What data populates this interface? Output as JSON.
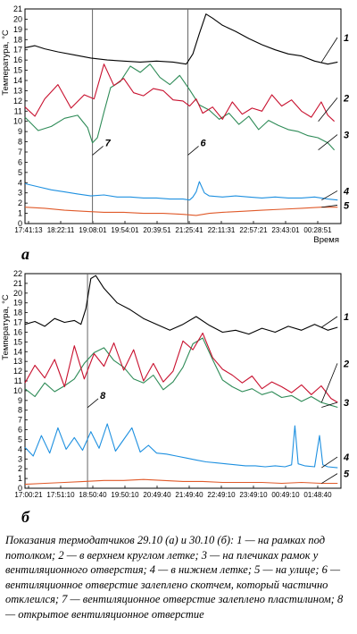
{
  "chart_data": [
    {
      "type": "line",
      "panel_label": "а",
      "ylabel": "Температура, °C",
      "xlabel": "Время",
      "ylim": [
        0,
        21
      ],
      "y_ticks": [
        0,
        1,
        2,
        3,
        4,
        5,
        6,
        7,
        8,
        9,
        10,
        11,
        12,
        13,
        14,
        15,
        16,
        17,
        18,
        19,
        20,
        21
      ],
      "x_ticks": [
        "17:41:13",
        "18:22:11",
        "19:08:01",
        "19:54:01",
        "20:39:51",
        "21:25:41",
        "22:11:31",
        "22:57:21",
        "23:43:01",
        "00:28:51"
      ],
      "x_range": [
        0,
        9.6
      ],
      "vlines": [
        {
          "x": 2.05,
          "label": "7",
          "label_y": 7.4
        },
        {
          "x": 4.95,
          "label": "6",
          "label_y": 7.4
        }
      ],
      "series": [
        {
          "name": "1",
          "color": "#000000",
          "label_y": 18.2,
          "x": [
            0,
            0.3,
            0.6,
            1.0,
            1.5,
            2.0,
            2.5,
            3.0,
            3.5,
            4.0,
            4.5,
            4.9,
            5.1,
            5.3,
            5.5,
            5.7,
            6.0,
            6.4,
            6.8,
            7.2,
            7.6,
            8.0,
            8.4,
            8.8,
            9.2,
            9.5
          ],
          "y": [
            17.2,
            17.4,
            17.1,
            16.8,
            16.5,
            16.2,
            16.0,
            15.9,
            15.8,
            15.9,
            15.8,
            15.6,
            16.6,
            18.6,
            20.5,
            20.1,
            19.4,
            18.8,
            18.1,
            17.5,
            17.0,
            16.6,
            16.4,
            15.9,
            15.6,
            15.8
          ]
        },
        {
          "name": "2",
          "color": "#c8102e",
          "label_y": 12.3,
          "x": [
            0,
            0.3,
            0.6,
            1.0,
            1.4,
            1.8,
            2.1,
            2.4,
            2.7,
            3.0,
            3.3,
            3.6,
            3.9,
            4.2,
            4.5,
            4.8,
            5.0,
            5.2,
            5.4,
            5.7,
            6.0,
            6.3,
            6.6,
            6.9,
            7.2,
            7.5,
            7.8,
            8.1,
            8.4,
            8.7,
            9.0,
            9.2,
            9.4
          ],
          "y": [
            11.4,
            10.5,
            12.2,
            13.6,
            11.3,
            12.6,
            12.2,
            15.6,
            13.5,
            14.2,
            12.8,
            12.5,
            13.2,
            13.0,
            12.1,
            12.0,
            11.5,
            12.2,
            10.8,
            11.4,
            10.2,
            11.9,
            10.7,
            11.3,
            11.0,
            12.6,
            11.5,
            12.1,
            11.0,
            10.4,
            11.9,
            10.6,
            10.0
          ]
        },
        {
          "name": "3",
          "color": "#2e8b57",
          "label_y": 8.7,
          "x": [
            0,
            0.4,
            0.8,
            1.2,
            1.6,
            1.9,
            2.05,
            2.2,
            2.4,
            2.6,
            2.9,
            3.2,
            3.5,
            3.8,
            4.1,
            4.4,
            4.7,
            5.0,
            5.3,
            5.6,
            5.9,
            6.2,
            6.5,
            6.8,
            7.1,
            7.4,
            7.7,
            8.0,
            8.3,
            8.6,
            8.9,
            9.2,
            9.4
          ],
          "y": [
            10.4,
            9.1,
            9.5,
            10.3,
            10.6,
            9.4,
            7.9,
            8.4,
            10.9,
            13.3,
            13.9,
            15.4,
            14.8,
            15.6,
            14.3,
            13.6,
            14.5,
            13.1,
            11.6,
            11.1,
            10.2,
            10.8,
            9.7,
            10.5,
            9.2,
            10.1,
            9.6,
            9.2,
            9.0,
            8.6,
            8.4,
            7.9,
            7.2
          ]
        },
        {
          "name": "4",
          "color": "#1e90e0",
          "label_y": 3.2,
          "x": [
            0,
            0.4,
            0.8,
            1.2,
            1.6,
            2.0,
            2.4,
            2.8,
            3.2,
            3.6,
            4.0,
            4.4,
            4.8,
            5.0,
            5.1,
            5.2,
            5.3,
            5.45,
            5.6,
            6.0,
            6.4,
            6.8,
            7.2,
            7.6,
            8.0,
            8.4,
            8.8,
            9.2,
            9.5
          ],
          "y": [
            3.9,
            3.6,
            3.3,
            3.1,
            2.9,
            2.7,
            2.8,
            2.6,
            2.6,
            2.5,
            2.5,
            2.4,
            2.4,
            2.3,
            2.6,
            3.1,
            4.1,
            3.0,
            2.7,
            2.6,
            2.7,
            2.6,
            2.5,
            2.6,
            2.5,
            2.5,
            2.6,
            2.4,
            2.3
          ]
        },
        {
          "name": "5",
          "color": "#e05a2a",
          "label_y": 1.8,
          "x": [
            0,
            0.6,
            1.2,
            1.8,
            2.4,
            3.0,
            3.6,
            4.2,
            4.8,
            5.2,
            5.6,
            6.0,
            6.6,
            7.2,
            7.8,
            8.4,
            9.0,
            9.5
          ],
          "y": [
            1.6,
            1.5,
            1.3,
            1.2,
            1.1,
            1.1,
            1.0,
            1.0,
            0.9,
            0.8,
            1.0,
            1.1,
            1.2,
            1.3,
            1.4,
            1.5,
            1.6,
            1.6
          ]
        }
      ]
    },
    {
      "type": "line",
      "panel_label": "б",
      "ylabel": "Температура, °C",
      "xlabel": "",
      "ylim": [
        0,
        22
      ],
      "y_ticks": [
        0,
        1,
        2,
        3,
        4,
        5,
        6,
        7,
        8,
        9,
        10,
        11,
        12,
        13,
        14,
        15,
        16,
        17,
        18,
        19,
        20,
        21,
        22
      ],
      "x_ticks": [
        "17:00:21",
        "17:51:10",
        "18:50:40",
        "19:50:10",
        "20:49:40",
        "21:49:40",
        "22:49:10",
        "23:49:10",
        "00:49:10",
        "01:48:40"
      ],
      "x_range": [
        0,
        9.6
      ],
      "vlines": [
        {
          "x": 1.9,
          "label": "8",
          "label_y": 9.0
        }
      ],
      "series": [
        {
          "name": "1",
          "color": "#000000",
          "label_y": 17.6,
          "x": [
            0,
            0.3,
            0.6,
            0.9,
            1.2,
            1.5,
            1.7,
            1.85,
            2.0,
            2.15,
            2.4,
            2.8,
            3.2,
            3.6,
            4.0,
            4.4,
            4.8,
            5.2,
            5.6,
            6.0,
            6.4,
            6.8,
            7.2,
            7.6,
            8.0,
            8.4,
            8.8,
            9.2,
            9.5
          ],
          "y": [
            16.8,
            17.1,
            16.6,
            17.4,
            17.0,
            17.2,
            16.8,
            18.4,
            21.5,
            21.8,
            20.5,
            19.0,
            18.3,
            17.4,
            16.8,
            16.2,
            16.8,
            17.6,
            16.7,
            16.0,
            16.2,
            15.8,
            16.4,
            16.0,
            16.6,
            16.2,
            16.8,
            16.2,
            16.5
          ]
        },
        {
          "name": "2",
          "color": "#c8102e",
          "label_y": 12.8,
          "x": [
            0,
            0.3,
            0.6,
            0.9,
            1.2,
            1.5,
            1.8,
            2.1,
            2.4,
            2.7,
            3.0,
            3.3,
            3.6,
            3.9,
            4.2,
            4.5,
            4.8,
            5.1,
            5.4,
            5.7,
            6.0,
            6.3,
            6.6,
            6.9,
            7.2,
            7.5,
            7.8,
            8.1,
            8.4,
            8.7,
            9.0,
            9.3,
            9.5
          ],
          "y": [
            10.8,
            12.6,
            11.3,
            13.2,
            10.4,
            14.6,
            11.2,
            13.8,
            12.5,
            14.9,
            12.1,
            14.2,
            11.0,
            12.8,
            10.9,
            12.0,
            15.1,
            14.2,
            15.9,
            13.4,
            12.2,
            11.6,
            10.8,
            11.5,
            10.2,
            10.9,
            10.4,
            9.8,
            10.6,
            9.6,
            10.5,
            9.2,
            8.8
          ]
        },
        {
          "name": "3",
          "color": "#2e8b57",
          "label_y": 8.8,
          "x": [
            0,
            0.3,
            0.6,
            0.9,
            1.2,
            1.5,
            1.8,
            2.1,
            2.4,
            2.7,
            3.0,
            3.3,
            3.6,
            3.9,
            4.2,
            4.5,
            4.8,
            5.1,
            5.4,
            5.7,
            6.0,
            6.3,
            6.6,
            6.9,
            7.2,
            7.5,
            7.8,
            8.1,
            8.4,
            8.7,
            9.0,
            9.3,
            9.5
          ],
          "y": [
            10.2,
            9.4,
            10.8,
            9.9,
            10.5,
            11.2,
            12.8,
            13.9,
            14.4,
            13.1,
            12.4,
            11.2,
            10.8,
            11.6,
            10.1,
            10.9,
            12.4,
            14.8,
            15.4,
            13.2,
            11.1,
            10.4,
            9.9,
            10.2,
            9.6,
            9.9,
            9.3,
            9.5,
            8.9,
            9.4,
            8.8,
            8.5,
            8.3
          ]
        },
        {
          "name": "4",
          "color": "#1e90e0",
          "label_y": 3.2,
          "x": [
            0,
            0.25,
            0.5,
            0.75,
            1.0,
            1.25,
            1.5,
            1.75,
            2.0,
            2.25,
            2.5,
            2.75,
            3.0,
            3.25,
            3.5,
            3.75,
            4.0,
            4.3,
            4.6,
            4.9,
            5.2,
            5.5,
            5.8,
            6.1,
            6.4,
            6.7,
            7.0,
            7.3,
            7.6,
            7.9,
            8.1,
            8.2,
            8.3,
            8.5,
            8.8,
            8.95,
            9.05,
            9.2,
            9.5
          ],
          "y": [
            4.2,
            3.3,
            5.4,
            3.6,
            6.2,
            4.0,
            5.2,
            3.9,
            5.8,
            4.1,
            6.6,
            3.8,
            5.0,
            6.2,
            3.7,
            4.4,
            3.6,
            3.5,
            3.3,
            3.1,
            2.9,
            2.7,
            2.6,
            2.5,
            2.4,
            2.3,
            2.3,
            2.2,
            2.3,
            2.2,
            2.4,
            6.4,
            2.5,
            2.3,
            2.2,
            5.4,
            2.4,
            2.2,
            2.1
          ]
        },
        {
          "name": "5",
          "color": "#e05a2a",
          "label_y": 1.5,
          "x": [
            0,
            0.6,
            1.2,
            1.8,
            2.4,
            3.0,
            3.6,
            4.2,
            4.8,
            5.4,
            6.0,
            6.6,
            7.2,
            7.8,
            8.4,
            9.0,
            9.5
          ],
          "y": [
            0.4,
            0.5,
            0.6,
            0.7,
            0.8,
            0.8,
            0.9,
            0.8,
            0.7,
            0.7,
            0.6,
            0.6,
            0.6,
            0.5,
            0.6,
            0.5,
            0.5
          ]
        }
      ]
    }
  ],
  "caption": "Показания термодатчиков 29.10 (а) и 30.10 (б): 1 — на рамках под потолком; 2 — в верхнем круглом летке; 3 — на плечиках рамок у вентиляционного отверстия; 4 — в нижнем летке; 5 — на улице; 6 — вентиляционное отверстие залеплено скотчем, который частично отклеился; 7 — вентиляционное отверстие залеплено пластилином; 8 — открытое вентиляционное отверстие"
}
